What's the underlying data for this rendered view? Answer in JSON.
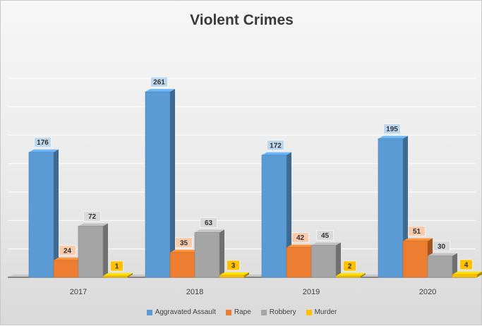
{
  "chart_data": {
    "type": "bar",
    "title": "Violent Crimes",
    "categories": [
      "2017",
      "2018",
      "2019",
      "2020"
    ],
    "series": [
      {
        "name": "Aggravated Assault",
        "values": [
          176,
          261,
          172,
          195
        ],
        "color": "#5b9bd5"
      },
      {
        "name": "Rape",
        "values": [
          24,
          35,
          42,
          51
        ],
        "color": "#ed7d31"
      },
      {
        "name": "Robbery",
        "values": [
          72,
          63,
          45,
          30
        ],
        "color": "#a5a5a5"
      },
      {
        "name": "Murder",
        "values": [
          1,
          3,
          2,
          4
        ],
        "color": "#ffc000"
      }
    ],
    "ylim": [
      0,
      280
    ],
    "grid": true,
    "legend_position": "bottom",
    "data_labels": true,
    "style": "3d-column"
  }
}
